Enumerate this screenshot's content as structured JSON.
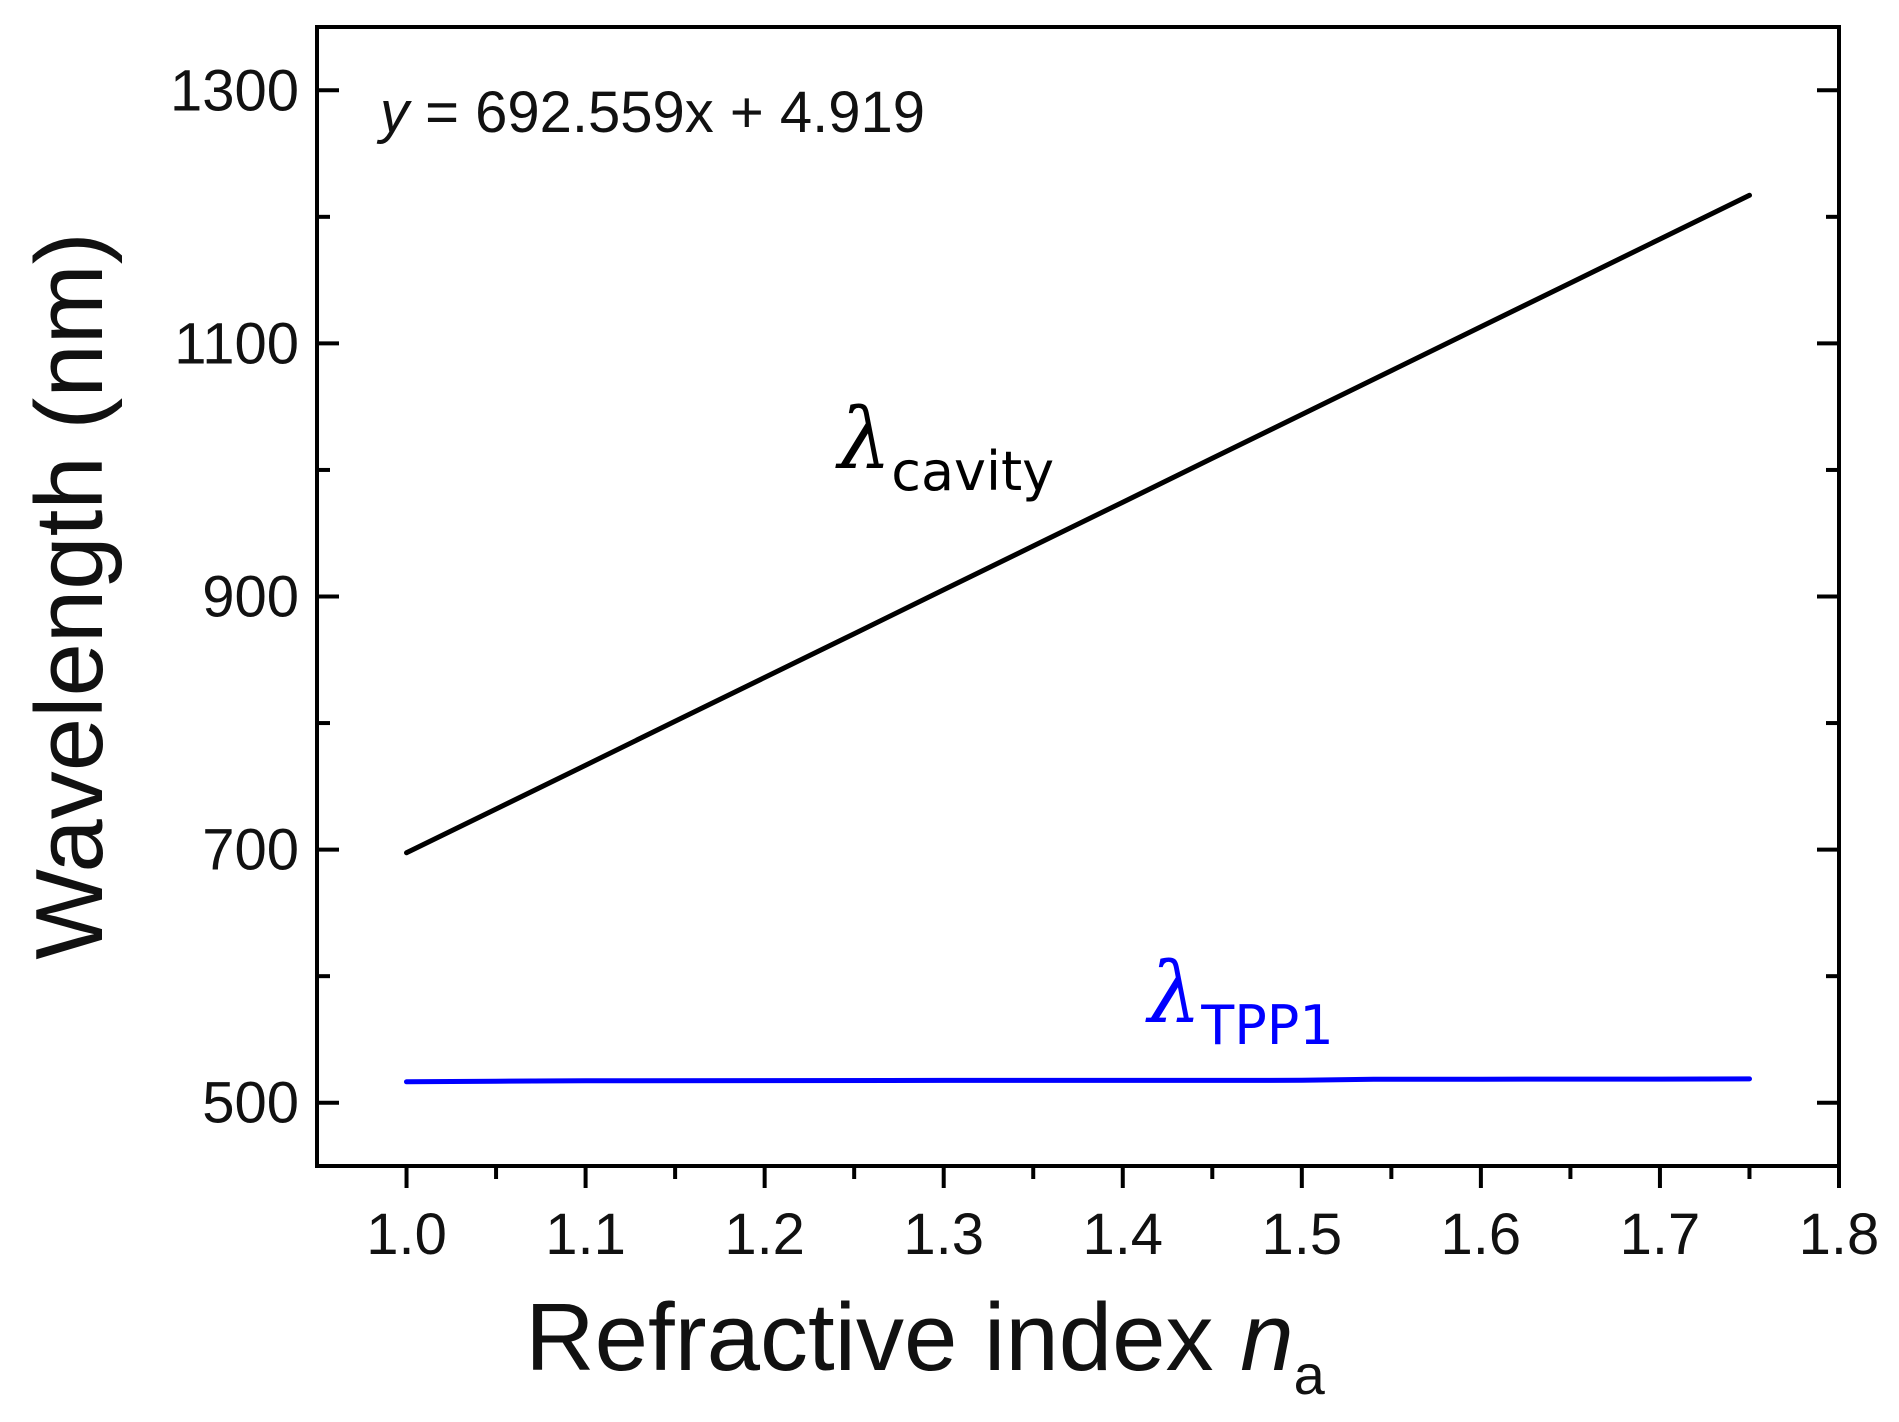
{
  "chart_data": {
    "type": "line",
    "title": "",
    "xlabel": "Refractive index ",
    "xlabel_symbol": "n",
    "xlabel_subscript": "a",
    "ylabel": "Wavelength (nm)",
    "xlim": [
      0.95,
      1.8
    ],
    "ylim": [
      450,
      1350
    ],
    "xticks": [
      1.0,
      1.1,
      1.2,
      1.3,
      1.4,
      1.5,
      1.6,
      1.7,
      1.8
    ],
    "xtick_labels": [
      "1.0",
      "1.1",
      "1.2",
      "1.3",
      "1.4",
      "1.5",
      "1.6",
      "1.7",
      "1.8"
    ],
    "yticks": [
      500,
      700,
      900,
      1100,
      1300
    ],
    "ytick_labels": [
      "500",
      "700",
      "900",
      "1100",
      "1300"
    ],
    "y_minor_ticks": [
      600,
      800,
      1000,
      1200
    ],
    "grid": false,
    "annotation": {
      "italic_part": "y",
      "text": " = 692.559x + 4.919"
    },
    "series": [
      {
        "name": "λcavity",
        "label_symbol": "λ",
        "label_subscript": "cavity",
        "color": "#000000",
        "x": [
          1.0,
          1.05,
          1.1,
          1.15,
          1.2,
          1.25,
          1.3,
          1.35,
          1.4,
          1.45,
          1.5,
          1.55,
          1.6,
          1.65,
          1.7,
          1.75
        ],
        "y": [
          697.5,
          732.1,
          766.7,
          801.4,
          836.0,
          870.6,
          905.3,
          939.9,
          974.5,
          1009.2,
          1043.8,
          1078.5,
          1113.1,
          1147.7,
          1182.4,
          1217.0
        ]
      },
      {
        "name": "λTPP1",
        "label_symbol": "λ",
        "label_subscript": "TPP1",
        "color": "#0000ff",
        "x": [
          1.0,
          1.05,
          1.1,
          1.2,
          1.3,
          1.4,
          1.5,
          1.54,
          1.6,
          1.7,
          1.75
        ],
        "y": [
          516.5,
          517.0,
          517.3,
          517.5,
          517.6,
          517.6,
          517.7,
          518.5,
          518.6,
          518.7,
          518.8
        ]
      }
    ]
  }
}
